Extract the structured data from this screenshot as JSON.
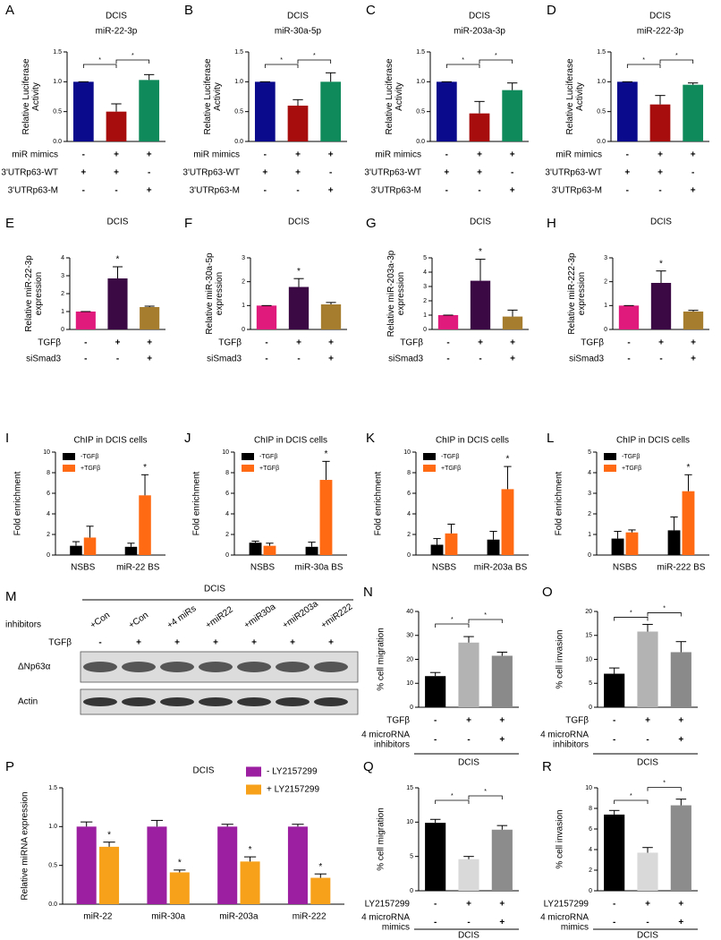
{
  "chart_data": [
    {
      "type": "bar",
      "panel": "A",
      "title": "DCIS",
      "subtitle": "miR-22-3p",
      "ylabel": [
        "Relative Luciferase",
        "Activity"
      ],
      "ylim": [
        0,
        1.5
      ],
      "yticks": [
        {
          "value": 0,
          "label": "0.0"
        },
        {
          "value": 0.5,
          "label": "0.5"
        },
        {
          "value": 1,
          "label": "1.0"
        },
        {
          "value": 1.5,
          "label": "1.5"
        }
      ],
      "values": [
        1.0,
        0.5,
        1.03
      ],
      "errors": [
        0,
        0.13,
        0.09
      ],
      "colors": [
        "#0a0a8c",
        "#a80d0d",
        "#0f8a5a"
      ],
      "brackets": [
        "*",
        "*"
      ],
      "conditions": [
        {
          "label": [
            "miR mimics"
          ],
          "values": [
            "-",
            "+",
            "+"
          ]
        },
        {
          "label": [
            "3'UTRp63-WT"
          ],
          "values": [
            "+",
            "+",
            "-"
          ]
        },
        {
          "label": [
            "3'UTRp63-M"
          ],
          "values": [
            "-",
            "-",
            "+"
          ]
        }
      ]
    },
    {
      "type": "bar",
      "panel": "B",
      "title": "DCIS",
      "subtitle": "miR-30a-5p",
      "ylabel": [
        "Relative Luciferase",
        "Activity"
      ],
      "ylim": [
        0,
        1.5
      ],
      "yticks": [
        {
          "value": 0,
          "label": "0.0"
        },
        {
          "value": 0.5,
          "label": "0.5"
        },
        {
          "value": 1,
          "label": "1.0"
        },
        {
          "value": 1.5,
          "label": "1.5"
        }
      ],
      "values": [
        1.0,
        0.6,
        1.0
      ],
      "errors": [
        0,
        0.1,
        0.15
      ],
      "colors": [
        "#0a0a8c",
        "#a80d0d",
        "#0f8a5a"
      ],
      "brackets": [
        "*",
        "*"
      ],
      "conditions": [
        {
          "label": [
            "miR mimics"
          ],
          "values": [
            "-",
            "+",
            "+"
          ]
        },
        {
          "label": [
            "3'UTRp63-WT"
          ],
          "values": [
            "+",
            "+",
            "-"
          ]
        },
        {
          "label": [
            "3'UTRp63-M"
          ],
          "values": [
            "-",
            "-",
            "+"
          ]
        }
      ]
    },
    {
      "type": "bar",
      "panel": "C",
      "title": "DCIS",
      "subtitle": "miR-203a-3p",
      "ylabel": [
        "Relative Luciferase",
        "Activity"
      ],
      "ylim": [
        0,
        1.5
      ],
      "yticks": [
        {
          "value": 0,
          "label": "0.0"
        },
        {
          "value": 0.5,
          "label": "0.5"
        },
        {
          "value": 1,
          "label": "1.0"
        },
        {
          "value": 1.5,
          "label": "1.5"
        }
      ],
      "values": [
        1.0,
        0.47,
        0.86
      ],
      "errors": [
        0,
        0.2,
        0.12
      ],
      "colors": [
        "#0a0a8c",
        "#a80d0d",
        "#0f8a5a"
      ],
      "brackets": [
        "*",
        "*"
      ],
      "conditions": [
        {
          "label": [
            "miR mimics"
          ],
          "values": [
            "-",
            "+",
            "+"
          ]
        },
        {
          "label": [
            "3'UTRp63-WT"
          ],
          "values": [
            "+",
            "+",
            "-"
          ]
        },
        {
          "label": [
            "3'UTRp63-M"
          ],
          "values": [
            "-",
            "-",
            "+"
          ]
        }
      ]
    },
    {
      "type": "bar",
      "panel": "D",
      "title": "DCIS",
      "subtitle": "miR-222-3p",
      "ylabel": [
        "Relative Luciferase",
        "Activity"
      ],
      "ylim": [
        0,
        1.5
      ],
      "yticks": [
        {
          "value": 0,
          "label": "0.0"
        },
        {
          "value": 0.5,
          "label": "0.5"
        },
        {
          "value": 1,
          "label": "1.0"
        },
        {
          "value": 1.5,
          "label": "1.5"
        }
      ],
      "values": [
        1.0,
        0.62,
        0.95
      ],
      "errors": [
        0,
        0.15,
        0.03
      ],
      "colors": [
        "#0a0a8c",
        "#a80d0d",
        "#0f8a5a"
      ],
      "brackets": [
        "*",
        "*"
      ],
      "conditions": [
        {
          "label": [
            "miR mimics"
          ],
          "values": [
            "-",
            "+",
            "+"
          ]
        },
        {
          "label": [
            "3'UTRp63-WT"
          ],
          "values": [
            "+",
            "+",
            "-"
          ]
        },
        {
          "label": [
            "3'UTRp63-M"
          ],
          "values": [
            "-",
            "-",
            "+"
          ]
        }
      ]
    },
    {
      "type": "bar",
      "panel": "E",
      "title": "DCIS",
      "ylabel": [
        "Relative miR-22-3p",
        "expression"
      ],
      "ylim": [
        0,
        4
      ],
      "yticks": [
        0,
        1,
        2,
        3,
        4
      ],
      "values": [
        1,
        2.85,
        1.25
      ],
      "errors": [
        0,
        0.65,
        0.05
      ],
      "colors": [
        "#e0197d",
        "#3b0a45",
        "#a67c2e"
      ],
      "annotations": [
        null,
        "*",
        null
      ],
      "conditions": [
        {
          "label": [
            "TGFβ"
          ],
          "values": [
            "-",
            "+",
            "+"
          ]
        },
        {
          "label": [
            "siSmad3"
          ],
          "values": [
            "-",
            "-",
            "+"
          ]
        }
      ]
    },
    {
      "type": "bar",
      "panel": "F",
      "title": "DCIS",
      "ylabel": [
        "Relative miR-30a-5p",
        "expression"
      ],
      "ylim": [
        0,
        3
      ],
      "yticks": [
        0,
        1,
        2,
        3
      ],
      "values": [
        1,
        1.78,
        1.05
      ],
      "errors": [
        0,
        0.35,
        0.08
      ],
      "colors": [
        "#e0197d",
        "#3b0a45",
        "#a67c2e"
      ],
      "annotations": [
        null,
        "*",
        null
      ],
      "conditions": [
        {
          "label": [
            "TGFβ"
          ],
          "values": [
            "-",
            "+",
            "+"
          ]
        },
        {
          "label": [
            "siSmad3"
          ],
          "values": [
            "-",
            "-",
            "+"
          ]
        }
      ]
    },
    {
      "type": "bar",
      "panel": "G",
      "title": "DCIS",
      "ylabel": [
        "Relative miR-203a-3p",
        "expression"
      ],
      "ylim": [
        0,
        5
      ],
      "yticks": [
        0,
        1,
        2,
        3,
        4,
        5
      ],
      "values": [
        1,
        3.4,
        0.9
      ],
      "errors": [
        0,
        1.5,
        0.45
      ],
      "colors": [
        "#e0197d",
        "#3b0a45",
        "#a67c2e"
      ],
      "annotations": [
        null,
        "*",
        null
      ],
      "conditions": [
        {
          "label": [
            "TGFβ"
          ],
          "values": [
            "-",
            "+",
            "+"
          ]
        },
        {
          "label": [
            "siSmad3"
          ],
          "values": [
            "-",
            "-",
            "+"
          ]
        }
      ]
    },
    {
      "type": "bar",
      "panel": "H",
      "title": "DCIS",
      "ylabel": [
        "Relative miR-222-3p",
        "expression"
      ],
      "ylim": [
        0,
        3
      ],
      "yticks": [
        0,
        1,
        2,
        3
      ],
      "values": [
        1,
        1.95,
        0.75
      ],
      "errors": [
        0,
        0.5,
        0.05
      ],
      "colors": [
        "#e0197d",
        "#3b0a45",
        "#a67c2e"
      ],
      "annotations": [
        null,
        "*",
        null
      ],
      "conditions": [
        {
          "label": [
            "TGFβ"
          ],
          "values": [
            "-",
            "+",
            "+"
          ]
        },
        {
          "label": [
            "siSmad3"
          ],
          "values": [
            "-",
            "-",
            "+"
          ]
        }
      ]
    },
    {
      "type": "grouped",
      "panel": "I",
      "title": "ChIP in DCIS cells",
      "ylabel": [
        "Fold enrichment"
      ],
      "ylim": [
        0,
        10
      ],
      "yticks": [
        0,
        2,
        4,
        6,
        8,
        10
      ],
      "categories": [
        "NSBS",
        "miR-22 BS"
      ],
      "series": [
        {
          "name": "-TGFβ",
          "color": "#000000",
          "values": [
            0.9,
            0.8
          ],
          "errors": [
            0.4,
            0.35
          ]
        },
        {
          "name": "+TGFβ",
          "color": "#ff6a13",
          "values": [
            1.7,
            5.8
          ],
          "errors": [
            1.1,
            2.0
          ],
          "annotations": [
            null,
            "*"
          ]
        }
      ]
    },
    {
      "type": "grouped",
      "panel": "J",
      "title": "ChIP in DCIS cells",
      "ylabel": [
        "Fold enrichment"
      ],
      "ylim": [
        0,
        10
      ],
      "yticks": [
        0,
        2,
        4,
        6,
        8,
        10
      ],
      "categories": [
        "NSBS",
        "miR-30a BS"
      ],
      "series": [
        {
          "name": "-TGFβ",
          "color": "#000000",
          "values": [
            1.2,
            0.8
          ],
          "errors": [
            0.15,
            0.45
          ]
        },
        {
          "name": "+TGFβ",
          "color": "#ff6a13",
          "values": [
            0.9,
            7.3
          ],
          "errors": [
            0.25,
            1.8
          ],
          "annotations": [
            null,
            "*"
          ]
        }
      ]
    },
    {
      "type": "grouped",
      "panel": "K",
      "title": "ChIP in DCIS cells",
      "ylabel": [
        "Fold enrichment"
      ],
      "ylim": [
        0,
        10
      ],
      "yticks": [
        0,
        2,
        4,
        6,
        8,
        10
      ],
      "categories": [
        "NSBS",
        "miR-203a BS"
      ],
      "series": [
        {
          "name": "-TGFβ",
          "color": "#000000",
          "values": [
            1.0,
            1.5
          ],
          "errors": [
            0.6,
            0.8
          ]
        },
        {
          "name": "+TGFβ",
          "color": "#ff6a13",
          "values": [
            2.1,
            6.4
          ],
          "errors": [
            0.9,
            2.2
          ],
          "annotations": [
            null,
            "*"
          ]
        }
      ]
    },
    {
      "type": "grouped",
      "panel": "L",
      "title": "ChIP in DCIS cells",
      "ylabel": [
        "Fold enrichment"
      ],
      "ylim": [
        0,
        5
      ],
      "yticks": [
        0,
        1,
        2,
        3,
        4,
        5
      ],
      "categories": [
        "NSBS",
        "miR-222 BS"
      ],
      "series": [
        {
          "name": "-TGFβ",
          "color": "#000000",
          "values": [
            0.8,
            1.2
          ],
          "errors": [
            0.35,
            0.65
          ]
        },
        {
          "name": "+TGFβ",
          "color": "#ff6a13",
          "values": [
            1.1,
            3.1
          ],
          "errors": [
            0.12,
            0.8
          ],
          "annotations": [
            null,
            "*"
          ]
        }
      ]
    },
    {
      "type": "bar",
      "panel": "N",
      "ylabel": [
        "% cell migration"
      ],
      "ylim": [
        0,
        40
      ],
      "yticks": [
        0,
        10,
        20,
        30,
        40
      ],
      "values": [
        13,
        27,
        21.5
      ],
      "errors": [
        1.5,
        2.5,
        1.5
      ],
      "colors": [
        "#000000",
        "#b3b3b3",
        "#8a8a8a"
      ],
      "brackets": [
        "*",
        "*"
      ],
      "conditions": [
        {
          "label": [
            "TGFβ"
          ],
          "values": [
            "-",
            "+",
            "+"
          ]
        },
        {
          "label": [
            "4 microRNA",
            "inhibitors"
          ],
          "values": [
            "-",
            "-",
            "+"
          ]
        }
      ],
      "xlabel": "DCIS"
    },
    {
      "type": "bar",
      "panel": "O",
      "ylabel": [
        "% cell invasion"
      ],
      "ylim": [
        0,
        20
      ],
      "yticks": [
        0,
        5,
        10,
        15,
        20
      ],
      "values": [
        7,
        15.8,
        11.5
      ],
      "errors": [
        1.2,
        1.5,
        2.2
      ],
      "colors": [
        "#000000",
        "#b3b3b3",
        "#8a8a8a"
      ],
      "brackets": [
        "*",
        "*"
      ],
      "conditions": [
        {
          "label": [
            "TGFβ"
          ],
          "values": [
            "-",
            "+",
            "+"
          ]
        },
        {
          "label": [
            "4 microRNA",
            "inhibitors"
          ],
          "values": [
            "-",
            "-",
            "+"
          ]
        }
      ],
      "xlabel": "DCIS"
    },
    {
      "type": "grouped",
      "panel": "P",
      "title": "DCIS",
      "ylabel": [
        "Relative miRNA expression"
      ],
      "ylim": [
        0,
        1.5
      ],
      "yticks": [
        {
          "value": 0,
          "label": "0.0"
        },
        {
          "value": 0.5,
          "label": "0.5"
        },
        {
          "value": 1,
          "label": "1.0"
        },
        {
          "value": 1.5,
          "label": "1.5"
        }
      ],
      "categories": [
        "miR-22",
        "miR-30a",
        "miR-203a",
        "miR-222"
      ],
      "legend": "right",
      "series": [
        {
          "name": "- LY2157299",
          "color": "#9b1fa0",
          "values": [
            1.0,
            1.0,
            1.0,
            1.0
          ],
          "errors": [
            0.06,
            0.08,
            0.03,
            0.03
          ]
        },
        {
          "name": "+ LY2157299",
          "color": "#f7a11a",
          "values": [
            0.74,
            0.41,
            0.55,
            0.34
          ],
          "errors": [
            0.06,
            0.03,
            0.06,
            0.05
          ],
          "annotations": [
            "*",
            "*",
            "*",
            "*"
          ]
        }
      ]
    },
    {
      "type": "bar",
      "panel": "Q",
      "ylabel": [
        "% cell migration"
      ],
      "ylim": [
        0,
        15
      ],
      "yticks": [
        0,
        5,
        10,
        15
      ],
      "values": [
        9.9,
        4.6,
        8.9
      ],
      "errors": [
        0.5,
        0.4,
        0.6
      ],
      "colors": [
        "#000000",
        "#d9d9d9",
        "#8c8c8c"
      ],
      "brackets": [
        "*",
        "*"
      ],
      "conditions": [
        {
          "label": [
            "LY2157299"
          ],
          "values": [
            "-",
            "+",
            "+"
          ]
        },
        {
          "label": [
            "4 microRNA",
            "mimics"
          ],
          "values": [
            "-",
            "-",
            "+"
          ]
        }
      ],
      "xlabel": "DCIS"
    },
    {
      "type": "bar",
      "panel": "R",
      "ylabel": [
        "% cell invasion"
      ],
      "ylim": [
        0,
        10
      ],
      "yticks": [
        0,
        2,
        4,
        6,
        8,
        10
      ],
      "values": [
        7.4,
        3.7,
        8.3
      ],
      "errors": [
        0.4,
        0.5,
        0.6
      ],
      "colors": [
        "#000000",
        "#d9d9d9",
        "#8c8c8c"
      ],
      "brackets": [
        "*",
        "*"
      ],
      "conditions": [
        {
          "label": [
            "LY2157299"
          ],
          "values": [
            "-",
            "+",
            "+"
          ]
        },
        {
          "label": [
            "4 microRNA",
            "mimics"
          ],
          "values": [
            "-",
            "-",
            "+"
          ]
        }
      ],
      "xlabel": "DCIS"
    }
  ],
  "blot": {
    "panel": "M",
    "title": "DCIS",
    "row_label": "inhibitors",
    "lanes": [
      "+Con",
      "+Con",
      "+4 miRs",
      "+miR22",
      "+miR30a",
      "+miR203a",
      "+miR222"
    ],
    "treatment": "TGFβ",
    "treatment_values": [
      "-",
      "+",
      "+",
      "+",
      "+",
      "+",
      "+"
    ],
    "bands": [
      "ΔNp63α",
      "Actin"
    ]
  }
}
